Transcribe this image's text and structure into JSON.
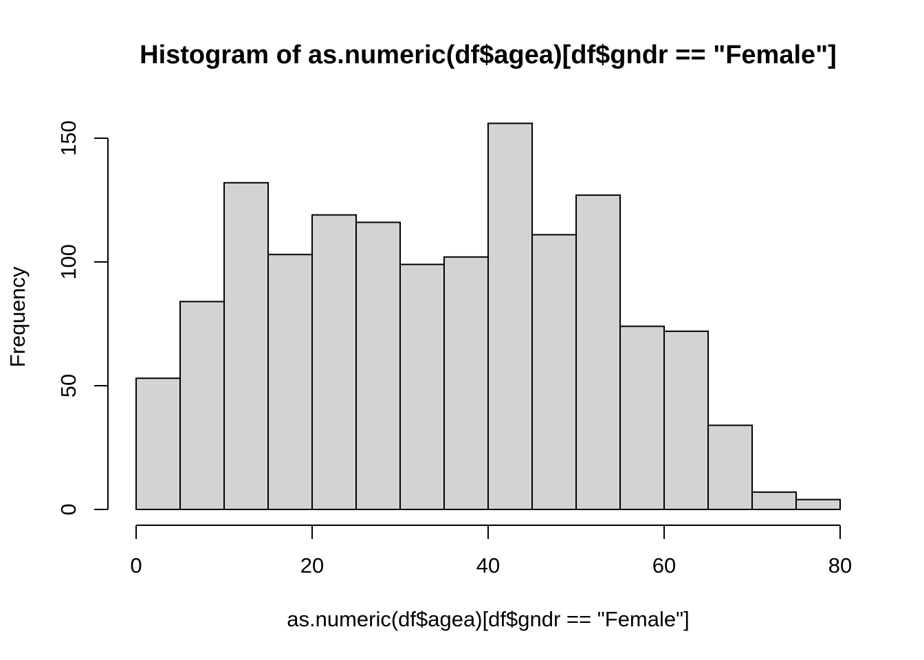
{
  "chart_data": {
    "type": "bar",
    "title": "Histogram of as.numeric(df$agea)[df$gndr == \"Female\"]",
    "xlabel": "as.numeric(df$agea)[df$gndr == \"Female\"]",
    "ylabel": "Frequency",
    "bins": [
      {
        "start": 0,
        "end": 5,
        "count": 53
      },
      {
        "start": 5,
        "end": 10,
        "count": 84
      },
      {
        "start": 10,
        "end": 15,
        "count": 132
      },
      {
        "start": 15,
        "end": 20,
        "count": 103
      },
      {
        "start": 20,
        "end": 25,
        "count": 119
      },
      {
        "start": 25,
        "end": 30,
        "count": 116
      },
      {
        "start": 30,
        "end": 35,
        "count": 99
      },
      {
        "start": 35,
        "end": 40,
        "count": 102
      },
      {
        "start": 40,
        "end": 45,
        "count": 156
      },
      {
        "start": 45,
        "end": 50,
        "count": 111
      },
      {
        "start": 50,
        "end": 55,
        "count": 127
      },
      {
        "start": 55,
        "end": 60,
        "count": 74
      },
      {
        "start": 60,
        "end": 65,
        "count": 72
      },
      {
        "start": 65,
        "end": 70,
        "count": 34
      },
      {
        "start": 70,
        "end": 75,
        "count": 7
      },
      {
        "start": 75,
        "end": 80,
        "count": 4
      }
    ],
    "xlim": [
      0,
      80
    ],
    "ylim": [
      0,
      150
    ],
    "xticks": [
      0,
      20,
      40,
      60,
      80
    ],
    "yticks": [
      0,
      50,
      100,
      150
    ],
    "bar_color": "#d3d3d3",
    "grid": false
  }
}
